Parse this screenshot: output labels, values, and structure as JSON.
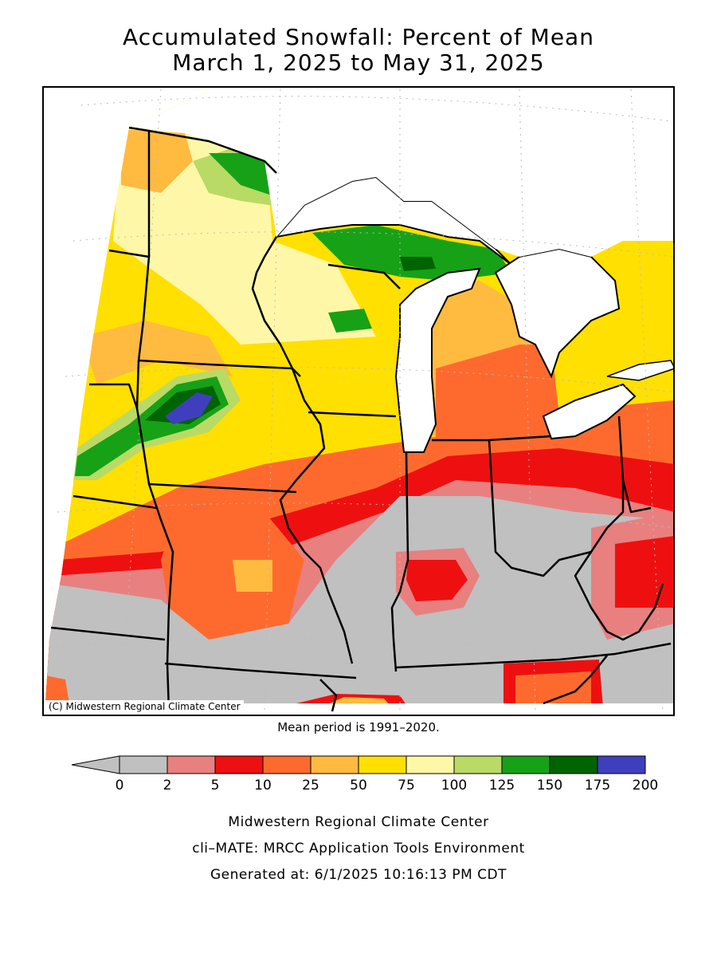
{
  "title": {
    "line1": "Accumulated Snowfall: Percent of Mean",
    "line2": "March 1, 2025 to May 31, 2025"
  },
  "map": {
    "credit": "(C) Midwestern Regional Climate Center",
    "colors": {
      "water": "#ffffff",
      "boundary": "#000000",
      "gridline": "#bbbbbb"
    }
  },
  "mean_period": "Mean period is 1991–2020.",
  "legend": {
    "bins": [
      {
        "color": "#c0c0c0",
        "from": "0",
        "to": "2"
      },
      {
        "color": "#e88080",
        "from": "2",
        "to": "5"
      },
      {
        "color": "#ee1010",
        "from": "5",
        "to": "10"
      },
      {
        "color": "#fe6a2e",
        "from": "10",
        "to": "25"
      },
      {
        "color": "#ffba40",
        "from": "25",
        "to": "50"
      },
      {
        "color": "#ffe000",
        "from": "50",
        "to": "75"
      },
      {
        "color": "#fff7a8",
        "from": "75",
        "to": "100"
      },
      {
        "color": "#bada66",
        "from": "100",
        "to": "125"
      },
      {
        "color": "#17a117",
        "from": "125",
        "to": "150"
      },
      {
        "color": "#006400",
        "from": "150",
        "to": "175"
      },
      {
        "color": "#3f3fbe",
        "from": "175",
        "to": "200"
      }
    ],
    "ticks": [
      "0",
      "2",
      "5",
      "10",
      "25",
      "50",
      "75",
      "100",
      "125",
      "150",
      "175",
      "200"
    ],
    "underflow_color": "#c0c0c0"
  },
  "footer": {
    "line1": "Midwestern Regional Climate Center",
    "line2": "cli–MATE: MRCC Application Tools Environment",
    "line3": "Generated at: 6/1/2025 10:16:13 PM CDT"
  }
}
